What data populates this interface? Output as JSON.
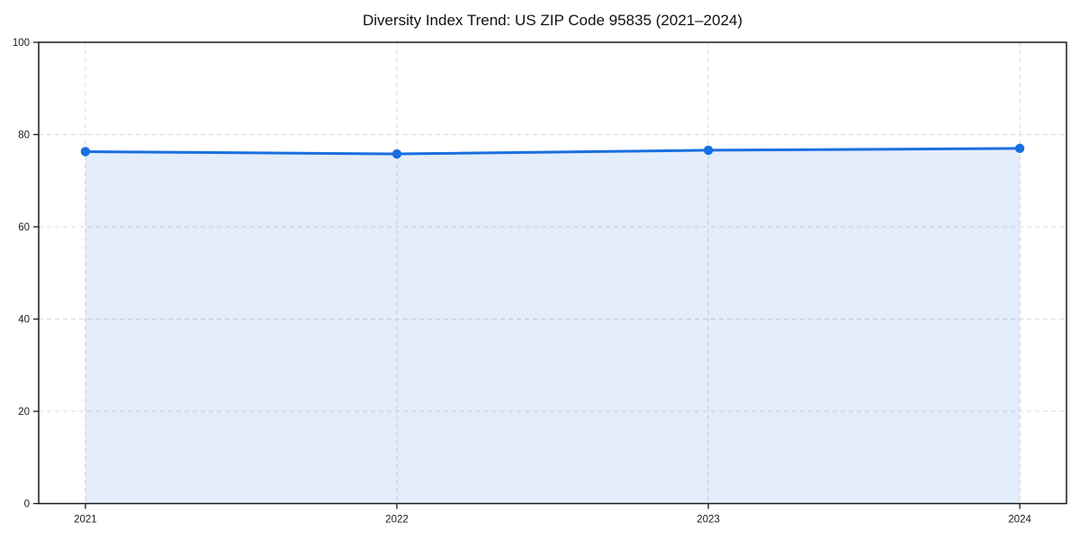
{
  "colors": {
    "line": "#1a6fe0",
    "fill": "rgba(26,111,224,0.12)",
    "grid": "#d9d9d9",
    "spine": "#1a1a1a",
    "tick_text": "#1a1a1a",
    "title_text": "#111111",
    "background": "#ffffff"
  },
  "chart_data": {
    "type": "line",
    "title": "Diversity Index Trend: US ZIP Code 95835 (2021–2024)",
    "x": [
      2021,
      2022,
      2023,
      2024
    ],
    "x_tick_labels": [
      "2021",
      "2022",
      "2023",
      "2024"
    ],
    "series": [
      {
        "name": "Diversity Index",
        "values": [
          76.3,
          75.8,
          76.6,
          77.0
        ]
      }
    ],
    "xlabel": "",
    "ylabel": "",
    "ylim": [
      0,
      100
    ],
    "yticks": [
      0,
      20,
      40,
      60,
      80,
      100
    ],
    "grid": true,
    "grid_style": "dashed",
    "legend": "none",
    "area_fill": true,
    "marker": "circle"
  }
}
